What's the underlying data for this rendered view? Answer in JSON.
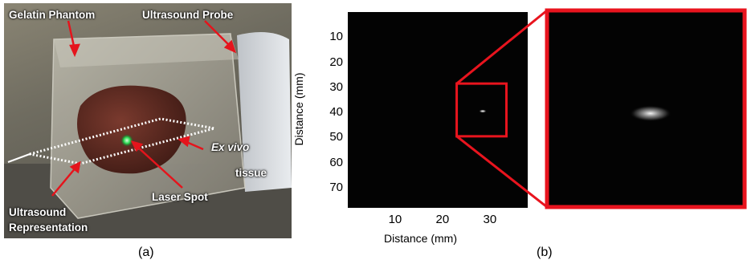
{
  "panel_a": {
    "labels": {
      "gelatin_phantom": "Gelatin Phantom",
      "ultrasound_probe": "Ultrasound Probe",
      "ex_vivo": "Ex vivo",
      "tissue": "tissue",
      "laser_spot": "Laser Spot",
      "ultrasound_representation_line1": "Ultrasound",
      "ultrasound_representation_line2": "Representation"
    },
    "caption": "(a)"
  },
  "panel_b": {
    "caption": "(b)",
    "colors": {
      "zoom_box": "#e8141e",
      "image_bg": "#030303"
    }
  },
  "chart_data": {
    "type": "heatmap",
    "title": "",
    "xlabel": "Distance (mm)",
    "ylabel": "Distance (mm)",
    "x_ticks": [
      "10",
      "20",
      "30"
    ],
    "y_ticks": [
      "10",
      "20",
      "30",
      "40",
      "50",
      "60",
      "70"
    ],
    "xlim": [
      0,
      38
    ],
    "ylim": [
      0,
      78
    ],
    "grid": false,
    "bright_spot": {
      "x": 28.5,
      "y": 39.5
    },
    "zoom_region": {
      "x": [
        23,
        33.5
      ],
      "y": [
        28.5,
        49.5
      ]
    }
  }
}
